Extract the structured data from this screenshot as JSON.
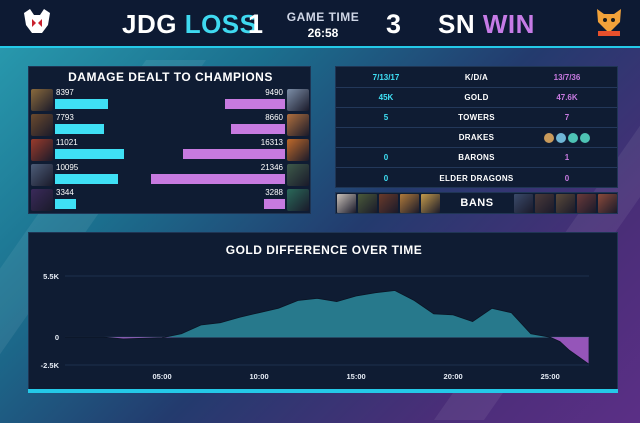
{
  "header": {
    "team_left": "JDG",
    "result_left": "LOSS",
    "score_left": "1",
    "game_time_label": "GAME TIME",
    "game_time": "26:58",
    "score_right": "3",
    "team_right": "SN",
    "result_right": "WIN"
  },
  "damage": {
    "title": "DAMAGE DEALT TO CHAMPIONS",
    "left": [
      {
        "value": "8397",
        "amount": 8397
      },
      {
        "value": "7793",
        "amount": 7793
      },
      {
        "value": "11021",
        "amount": 11021
      },
      {
        "value": "10095",
        "amount": 10095
      },
      {
        "value": "3344",
        "amount": 3344
      }
    ],
    "right": [
      {
        "value": "9490",
        "amount": 9490
      },
      {
        "value": "8660",
        "amount": 8660
      },
      {
        "value": "16313",
        "amount": 16313
      },
      {
        "value": "21346",
        "amount": 21346
      },
      {
        "value": "3288",
        "amount": 3288
      }
    ],
    "max": 21346
  },
  "stats": [
    {
      "left": "7/13/17",
      "label": "K/D/A",
      "right": "13/7/36"
    },
    {
      "left": "45K",
      "label": "GOLD",
      "right": "47.6K"
    },
    {
      "left": "5",
      "label": "TOWERS",
      "right": "7"
    },
    {
      "left": "",
      "label": "DRAKES",
      "right": ""
    },
    {
      "left": "0",
      "label": "BARONS",
      "right": "1"
    },
    {
      "left": "0",
      "label": "ELDER DRAGONS",
      "right": "0"
    }
  ],
  "drakes_right": [
    {
      "icon": "mountain-drake-icon",
      "color": "#c99a5b"
    },
    {
      "icon": "cloud-drake-icon",
      "color": "#6fb6d6"
    },
    {
      "icon": "ocean-drake-icon",
      "color": "#4ec3b5"
    },
    {
      "icon": "ocean-drake-icon",
      "color": "#4ec3b5"
    }
  ],
  "bans_label": "BANS",
  "gold_chart": {
    "title": "GOLD DIFFERENCE OVER TIME",
    "chart_data": {
      "type": "area",
      "title": "GOLD DIFFERENCE OVER TIME",
      "x_ticks": [
        "05:00",
        "10:00",
        "15:00",
        "20:00",
        "25:00"
      ],
      "y_ticks": [
        "5.5K",
        "0",
        "-2.5K"
      ],
      "ylim": [
        -2500,
        5500
      ],
      "xlim": [
        0,
        27
      ],
      "x_minutes": [
        0,
        1,
        2,
        3,
        4,
        5,
        6,
        7,
        8,
        9,
        10,
        11,
        12,
        13,
        14,
        15,
        16,
        17,
        18,
        19,
        20,
        21,
        22,
        23,
        24,
        25,
        25.5,
        26,
        26.98
      ],
      "values": [
        0,
        0,
        0,
        -150,
        -100,
        -50,
        300,
        1100,
        1300,
        1800,
        2200,
        2600,
        3300,
        3500,
        3200,
        3700,
        4000,
        4200,
        3300,
        2100,
        2000,
        1400,
        2600,
        2200,
        300,
        0,
        -400,
        -1200,
        -2400
      ]
    }
  }
}
